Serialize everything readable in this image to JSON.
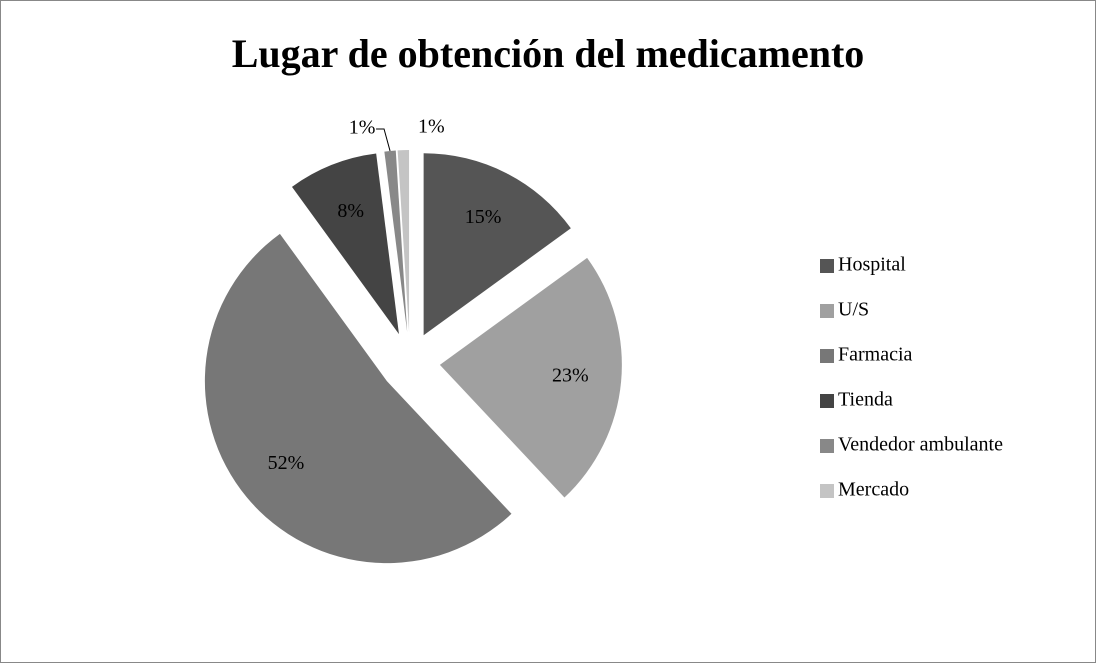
{
  "chart_data": {
    "type": "pie",
    "title": "Lugar de obtención del medicamento",
    "categories": [
      "Hospital",
      "U/S",
      "Farmacia",
      "Tienda",
      "Vendedor ambulante",
      "Mercado"
    ],
    "values": [
      15,
      23,
      52,
      8,
      1,
      1
    ],
    "value_labels": [
      "15%",
      "23%",
      "52%",
      "8%",
      "1%",
      "1%"
    ],
    "colors": [
      "#555555",
      "#a0a0a0",
      "#777777",
      "#444444",
      "#888888",
      "#c4c4c4"
    ],
    "legend": "right"
  }
}
